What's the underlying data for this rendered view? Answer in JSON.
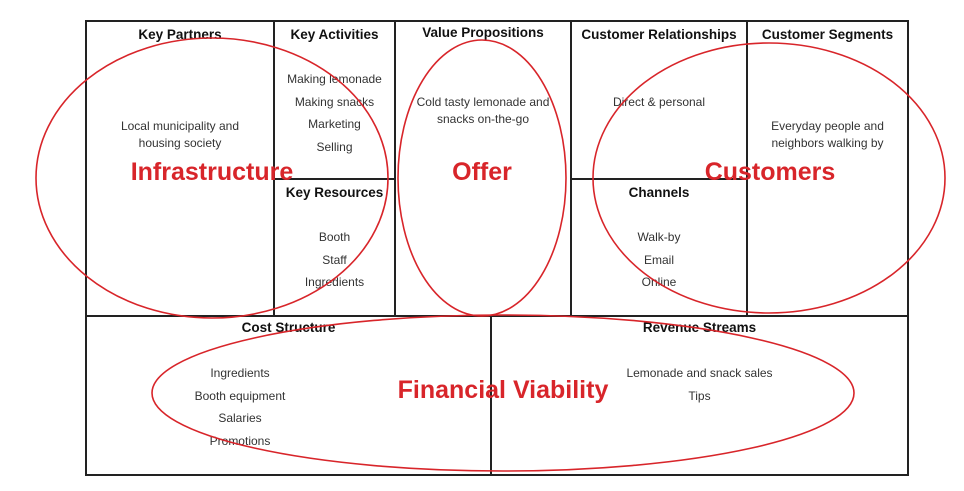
{
  "blocks": {
    "key_partners": {
      "title": "Key Partners",
      "items": [
        "Local municipality and",
        "housing society"
      ]
    },
    "key_activities": {
      "title": "Key Activities",
      "items": [
        "Making lemonade",
        "Making snacks",
        "Marketing",
        "Selling"
      ]
    },
    "key_resources": {
      "title": "Key Resources",
      "items": [
        "Booth",
        "Staff",
        "Ingredients"
      ]
    },
    "value_propositions": {
      "title": "Value Propositions",
      "items": [
        "Cold tasty lemonade and",
        "snacks on-the-go"
      ]
    },
    "customer_relationships": {
      "title": "Customer Relationships",
      "items": [
        "Direct & personal"
      ]
    },
    "channels": {
      "title": "Channels",
      "items": [
        "Walk-by",
        "Email",
        "Online"
      ]
    },
    "customer_segments": {
      "title": "Customer Segments",
      "items": [
        "Everyday people and",
        "neighbors walking by"
      ]
    },
    "cost_structure": {
      "title": "Cost Structure",
      "items": [
        "Ingredients",
        "Booth equipment",
        "Salaries",
        "Promotions"
      ]
    },
    "revenue_streams": {
      "title": "Revenue Streams",
      "items": [
        "Lemonade and snack sales",
        "Tips"
      ]
    }
  },
  "overlays": {
    "infrastructure": "Infrastructure",
    "offer": "Offer",
    "customers": "Customers",
    "financial_viability": "Financial Viability"
  },
  "colors": {
    "overlay_red": "#d8252a",
    "grid": "#222222"
  }
}
